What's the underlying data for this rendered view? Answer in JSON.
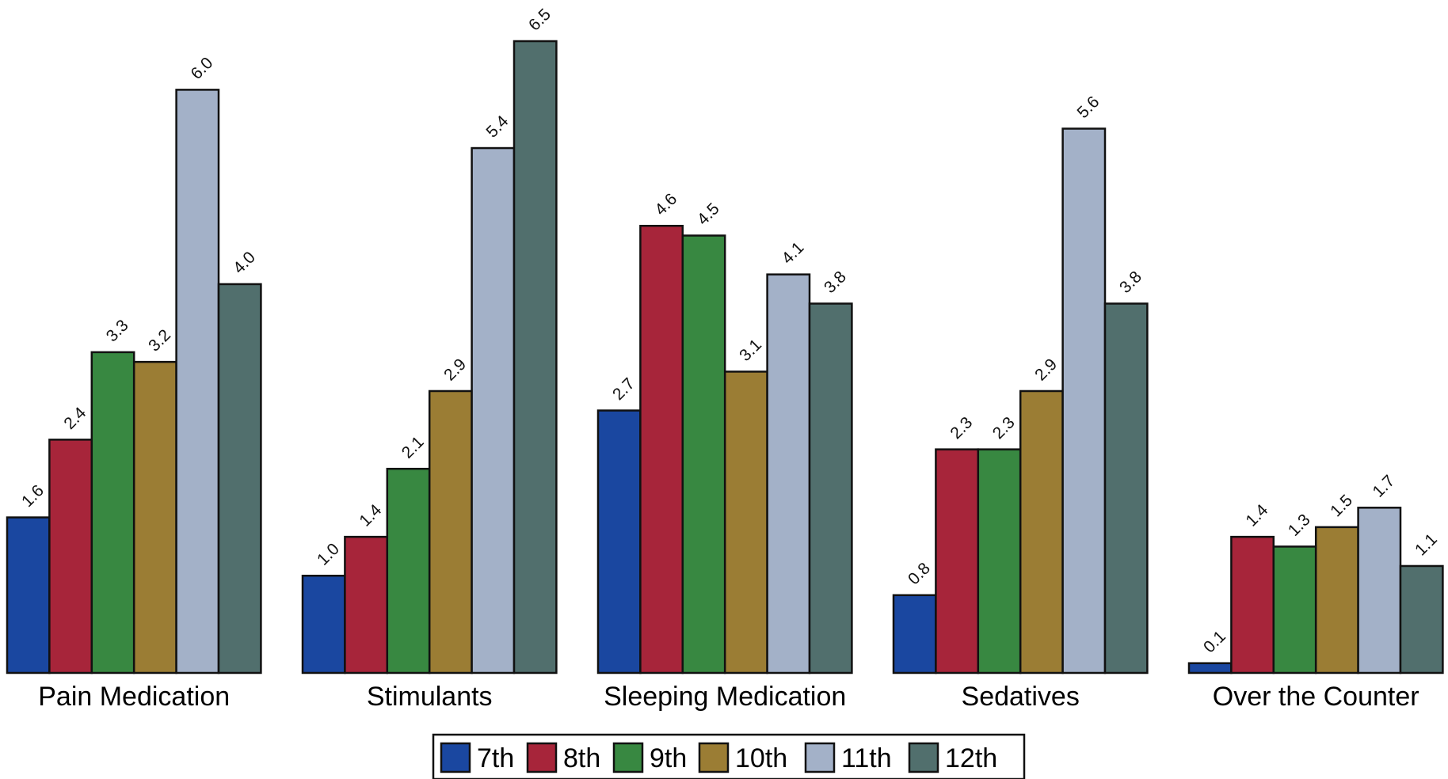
{
  "chart_data": {
    "type": "bar",
    "categories": [
      "Pain Medication",
      "Stimulants",
      "Sleeping Medication",
      "Sedatives",
      "Over the Counter"
    ],
    "series": [
      {
        "name": "7th",
        "color": "#1a47a0",
        "values": [
          1.6,
          1.0,
          2.7,
          0.8,
          0.1
        ]
      },
      {
        "name": "8th",
        "color": "#a7253a",
        "values": [
          2.4,
          1.4,
          4.6,
          2.3,
          1.4
        ]
      },
      {
        "name": "9th",
        "color": "#388841",
        "values": [
          3.3,
          2.1,
          4.5,
          2.3,
          1.3
        ]
      },
      {
        "name": "10th",
        "color": "#9b7d34",
        "values": [
          3.2,
          2.9,
          3.1,
          2.9,
          1.5
        ]
      },
      {
        "name": "11th",
        "color": "#a3b1c8",
        "values": [
          6.0,
          5.4,
          4.1,
          5.6,
          1.7
        ]
      },
      {
        "name": "12th",
        "color": "#516f6d",
        "values": [
          4.0,
          6.5,
          3.8,
          3.8,
          1.1
        ]
      }
    ],
    "ylim": [
      0,
      6.5
    ],
    "grid": false,
    "legend": "bottom-center",
    "value_labels": {
      "Pain Medication": [
        "1.6",
        "2.4",
        "3.3",
        "3.2",
        "6.0",
        "4.0"
      ],
      "Stimulants": [
        "1.0",
        "1.4",
        "2.1",
        "2.9",
        "5.4",
        "6.5"
      ],
      "Sleeping Medication": [
        "2.7",
        "4.6",
        "4.5",
        "3.1",
        "4.1",
        "3.8"
      ],
      "Sedatives": [
        "0.8",
        "2.3",
        "2.3",
        "2.9",
        "5.6",
        "3.8"
      ],
      "Over the Counter": [
        "0.1",
        "1.4",
        "1.3",
        "1.5",
        "1.7",
        "1.1"
      ]
    }
  }
}
